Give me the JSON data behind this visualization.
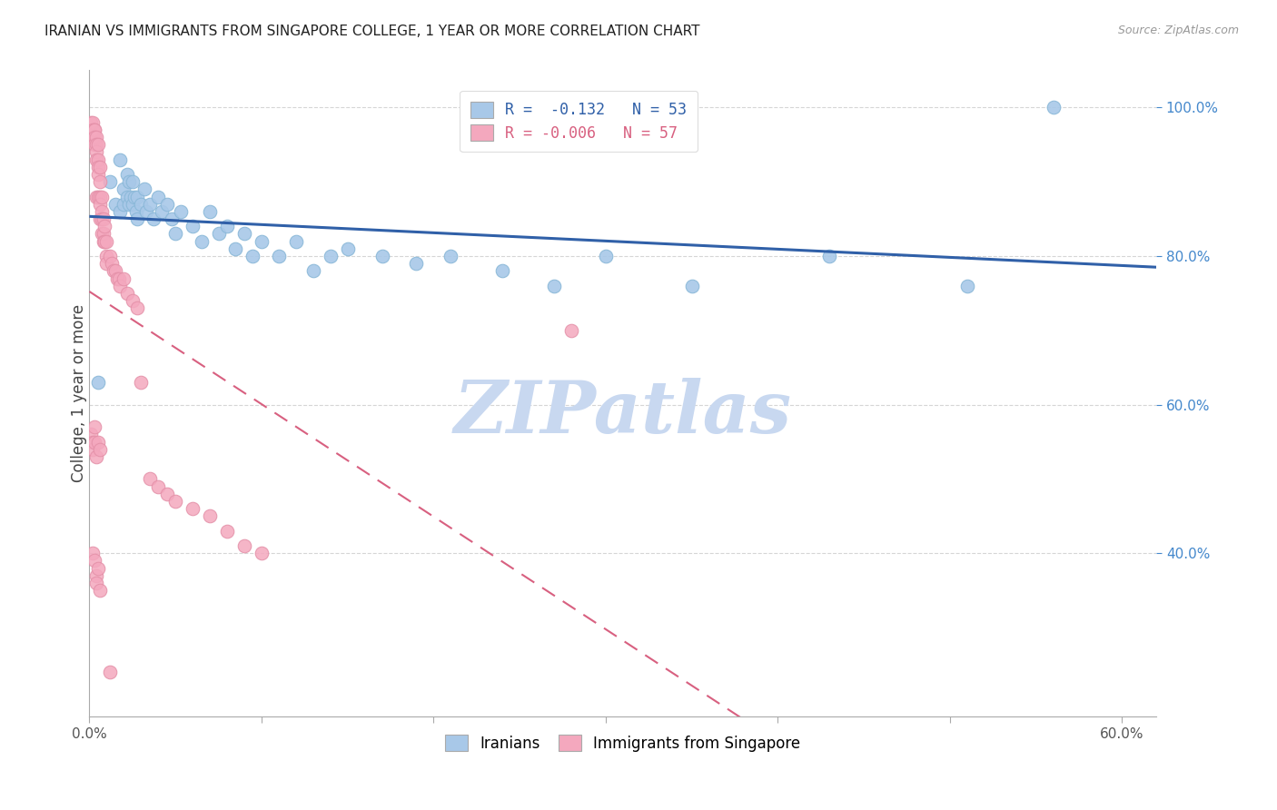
{
  "title": "IRANIAN VS IMMIGRANTS FROM SINGAPORE COLLEGE, 1 YEAR OR MORE CORRELATION CHART",
  "source": "Source: ZipAtlas.com",
  "ylabel": "College, 1 year or more",
  "xlim": [
    0.0,
    0.62
  ],
  "ylim": [
    0.18,
    1.05
  ],
  "right_yticks": [
    1.0,
    0.8,
    0.6,
    0.4
  ],
  "right_yticklabels": [
    "100.0%",
    "80.0%",
    "60.0%",
    "40.0%"
  ],
  "xtick_positions": [
    0.0,
    0.1,
    0.2,
    0.3,
    0.4,
    0.5,
    0.6
  ],
  "xticklabels": [
    "0.0%",
    "",
    "",
    "",
    "",
    "",
    "60.0%"
  ],
  "legend_r_blue": "-0.132",
  "legend_n_blue": "53",
  "legend_r_pink": "-0.006",
  "legend_n_pink": "57",
  "blue_color": "#a8c8e8",
  "pink_color": "#f4a8be",
  "blue_line_color": "#3060a8",
  "pink_line_color": "#d86080",
  "grid_color": "#cccccc",
  "watermark": "ZIPatlas",
  "watermark_color": "#c8d8f0",
  "blue_x": [
    0.005,
    0.012,
    0.018,
    0.015,
    0.018,
    0.02,
    0.02,
    0.022,
    0.022,
    0.023,
    0.023,
    0.024,
    0.025,
    0.025,
    0.026,
    0.027,
    0.028,
    0.028,
    0.03,
    0.032,
    0.033,
    0.035,
    0.037,
    0.04,
    0.042,
    0.045,
    0.048,
    0.05,
    0.053,
    0.06,
    0.065,
    0.07,
    0.075,
    0.08,
    0.085,
    0.09,
    0.095,
    0.1,
    0.11,
    0.12,
    0.13,
    0.14,
    0.15,
    0.17,
    0.19,
    0.21,
    0.24,
    0.27,
    0.3,
    0.35,
    0.43,
    0.51,
    0.56
  ],
  "blue_y": [
    0.63,
    0.9,
    0.93,
    0.87,
    0.86,
    0.89,
    0.87,
    0.91,
    0.88,
    0.9,
    0.87,
    0.88,
    0.9,
    0.87,
    0.88,
    0.86,
    0.88,
    0.85,
    0.87,
    0.89,
    0.86,
    0.87,
    0.85,
    0.88,
    0.86,
    0.87,
    0.85,
    0.83,
    0.86,
    0.84,
    0.82,
    0.86,
    0.83,
    0.84,
    0.81,
    0.83,
    0.8,
    0.82,
    0.8,
    0.82,
    0.78,
    0.8,
    0.81,
    0.8,
    0.79,
    0.8,
    0.78,
    0.76,
    0.8,
    0.76,
    0.8,
    0.76,
    1.0
  ],
  "pink_x": [
    0.001,
    0.002,
    0.002,
    0.002,
    0.003,
    0.003,
    0.003,
    0.003,
    0.004,
    0.004,
    0.004,
    0.004,
    0.004,
    0.005,
    0.005,
    0.005,
    0.005,
    0.005,
    0.006,
    0.006,
    0.006,
    0.006,
    0.006,
    0.007,
    0.007,
    0.007,
    0.007,
    0.008,
    0.008,
    0.008,
    0.009,
    0.009,
    0.01,
    0.01,
    0.01,
    0.012,
    0.013,
    0.014,
    0.015,
    0.016,
    0.017,
    0.018,
    0.02,
    0.022,
    0.025,
    0.028,
    0.03,
    0.035,
    0.04,
    0.045,
    0.05,
    0.06,
    0.07,
    0.08,
    0.09,
    0.1,
    0.28
  ],
  "pink_y": [
    0.98,
    0.98,
    0.97,
    0.96,
    0.97,
    0.97,
    0.96,
    0.95,
    0.96,
    0.95,
    0.94,
    0.93,
    0.88,
    0.95,
    0.93,
    0.92,
    0.91,
    0.88,
    0.92,
    0.9,
    0.88,
    0.87,
    0.85,
    0.88,
    0.86,
    0.85,
    0.83,
    0.85,
    0.83,
    0.82,
    0.84,
    0.82,
    0.82,
    0.8,
    0.79,
    0.8,
    0.79,
    0.78,
    0.78,
    0.77,
    0.77,
    0.76,
    0.77,
    0.75,
    0.74,
    0.73,
    0.63,
    0.5,
    0.49,
    0.48,
    0.47,
    0.46,
    0.45,
    0.43,
    0.41,
    0.4,
    0.7
  ],
  "bottom_pink_x": [
    0.002,
    0.003,
    0.004,
    0.004,
    0.005,
    0.006,
    0.012
  ],
  "bottom_pink_y": [
    0.4,
    0.39,
    0.37,
    0.36,
    0.38,
    0.35,
    0.24
  ],
  "low_pink_x": [
    0.001,
    0.002,
    0.002,
    0.003,
    0.003,
    0.004,
    0.005,
    0.006
  ],
  "low_pink_y": [
    0.56,
    0.55,
    0.54,
    0.57,
    0.55,
    0.53,
    0.55,
    0.54
  ]
}
